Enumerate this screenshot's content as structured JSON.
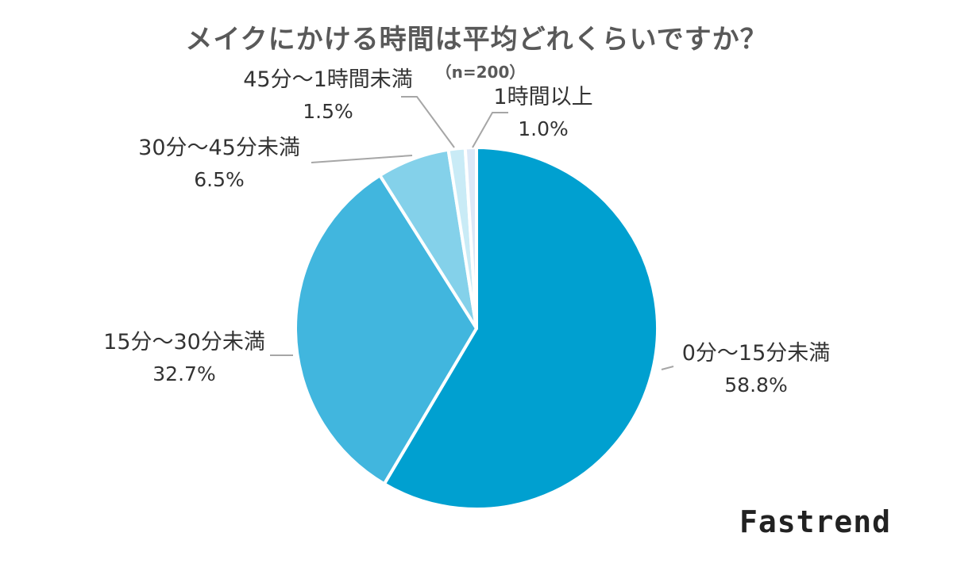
{
  "chart_data": {
    "type": "pie",
    "title": "メイクにかける時間は平均どれくらいですか？",
    "subtitle": "（n=200）",
    "slices": [
      {
        "label": "0分〜15分未満",
        "value": 58.8,
        "value_label": "58.8%",
        "color": "#00a0d0"
      },
      {
        "label": "15分〜30分未満",
        "value": 32.7,
        "value_label": "32.7%",
        "color": "#41b6de"
      },
      {
        "label": "30分〜45分未満",
        "value": 6.5,
        "value_label": "6.5%",
        "color": "#84d1ea"
      },
      {
        "label": "45分〜1時間未満",
        "value": 1.5,
        "value_label": "1.5%",
        "color": "#c9ebf6"
      },
      {
        "label": "1時間以上",
        "value": 1.0,
        "value_label": "1.0%",
        "color": "#dde8f7"
      }
    ],
    "start": "12 o'clock",
    "direction": "clockwise",
    "label_color": "#333333",
    "leader_line_color": "#a6a6a6"
  },
  "brand": {
    "logo_text": "Fastrend"
  }
}
